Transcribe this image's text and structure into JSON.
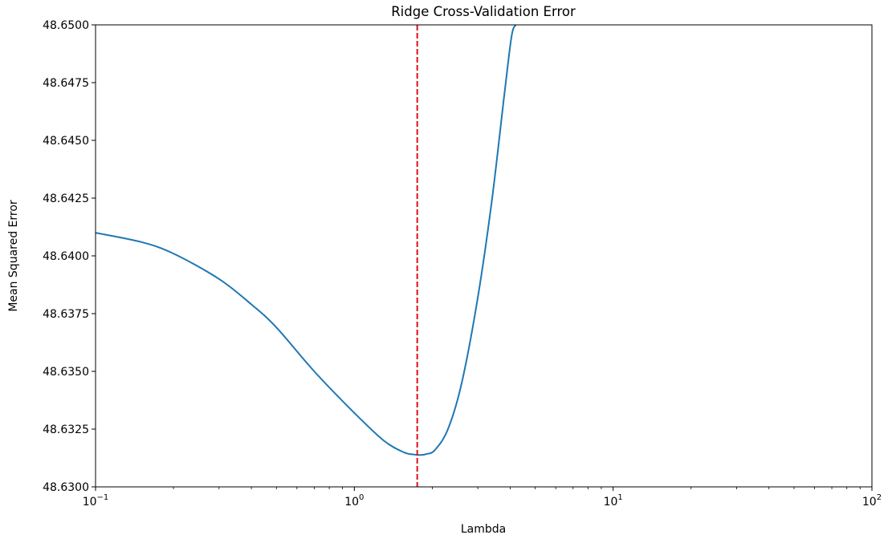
{
  "chart_data": {
    "type": "line",
    "title": "Ridge Cross-Validation Error",
    "xlabel": "Lambda",
    "ylabel": "Mean Squared Error",
    "xscale": "log",
    "xlim": [
      0.1,
      100
    ],
    "ylim": [
      48.63,
      48.65
    ],
    "x_ticks": [
      {
        "value": 0.1,
        "base": "10",
        "exp": "−1"
      },
      {
        "value": 1,
        "base": "10",
        "exp": "0"
      },
      {
        "value": 10,
        "base": "10",
        "exp": "1"
      },
      {
        "value": 100,
        "base": "10",
        "exp": "2"
      }
    ],
    "y_ticks": [
      {
        "value": 48.63,
        "label": "48.6300"
      },
      {
        "value": 48.6325,
        "label": "48.6325"
      },
      {
        "value": 48.635,
        "label": "48.6350"
      },
      {
        "value": 48.6375,
        "label": "48.6375"
      },
      {
        "value": 48.64,
        "label": "48.6400"
      },
      {
        "value": 48.6425,
        "label": "48.6425"
      },
      {
        "value": 48.645,
        "label": "48.6450"
      },
      {
        "value": 48.6475,
        "label": "48.6475"
      },
      {
        "value": 48.65,
        "label": "48.6500"
      }
    ],
    "grid": false,
    "series": [
      {
        "color": "#1f77b4",
        "x": [
          0.1,
          0.15,
          0.2,
          0.3,
          0.4,
          0.5,
          0.7,
          1.0,
          1.3,
          1.55,
          1.7,
          1.8,
          1.9,
          2.05,
          2.3,
          2.6,
          3.0,
          3.4,
          3.8,
          4.05,
          4.2
        ],
        "y": [
          48.641,
          48.6406,
          48.6401,
          48.639,
          48.6379,
          48.6369,
          48.635,
          48.6332,
          48.632,
          48.6315,
          48.6314,
          48.63138,
          48.63142,
          48.6316,
          48.6325,
          48.6345,
          48.6382,
          48.6424,
          48.647,
          48.6495,
          48.65
        ]
      }
    ],
    "reference_line": {
      "orientation": "vertical",
      "x": 1.75,
      "color": "#e0101b",
      "style": "dashed"
    }
  }
}
